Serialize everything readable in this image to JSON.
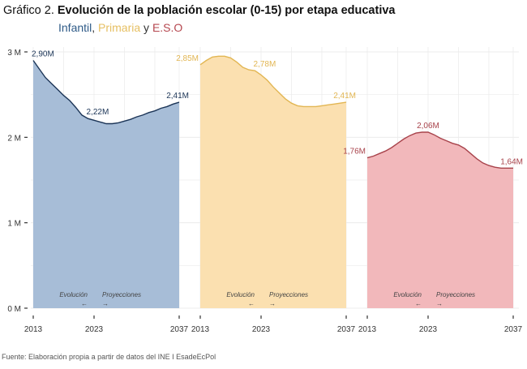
{
  "title": {
    "lead": "Gráfico 2.",
    "main": "Evolución de la población escolar (0-15) por etapa educativa"
  },
  "subtitle": {
    "parts": [
      {
        "text": "Infantil",
        "color": "#2e5a87"
      },
      {
        "text": ", ",
        "color": "#333333"
      },
      {
        "text": "Primaria",
        "color": "#e6bf62"
      },
      {
        "text": " y ",
        "color": "#333333"
      },
      {
        "text": "E.S.O",
        "color": "#b5474f"
      }
    ]
  },
  "source": "Fuente: Elaboración propia a partir de datos del INE I EsadeEcPol",
  "chart_data": {
    "type": "area",
    "xlim": [
      2013,
      2037
    ],
    "ylim": [
      0,
      3
    ],
    "y_ticks": [
      {
        "value": 0,
        "label": "0 M"
      },
      {
        "value": 1,
        "label": "1 M"
      },
      {
        "value": 2,
        "label": "2 M"
      },
      {
        "value": 3,
        "label": "3 M"
      }
    ],
    "x_ticks": [
      2013,
      2023,
      2037
    ],
    "grid": true,
    "annotations": {
      "left": "Evolución",
      "left_arrow": "←",
      "right": "Proyecciones",
      "right_arrow": "→",
      "split_year": 2023
    },
    "x": [
      2013,
      2014,
      2015,
      2016,
      2017,
      2018,
      2019,
      2020,
      2021,
      2022,
      2023,
      2024,
      2025,
      2026,
      2027,
      2028,
      2029,
      2030,
      2031,
      2032,
      2033,
      2034,
      2035,
      2036,
      2037
    ],
    "series": [
      {
        "name": "Infantil",
        "fill": "#a7bdd7",
        "line": "#1c3557",
        "label_color": "#1c3557",
        "values": [
          2.9,
          2.8,
          2.7,
          2.63,
          2.56,
          2.49,
          2.43,
          2.35,
          2.26,
          2.22,
          2.2,
          2.18,
          2.16,
          2.16,
          2.17,
          2.19,
          2.21,
          2.24,
          2.26,
          2.29,
          2.31,
          2.34,
          2.36,
          2.39,
          2.41
        ],
        "labels": [
          {
            "year": 2013,
            "text": "2,90M",
            "anchor": "start"
          },
          {
            "year": 2022,
            "text": "2,22M",
            "anchor": "start"
          },
          {
            "year": 2037,
            "text": "2,41M",
            "anchor": "end"
          }
        ]
      },
      {
        "name": "Primaria",
        "fill": "#fbe0b0",
        "line": "#e2b653",
        "label_color": "#e2b653",
        "values": [
          2.85,
          2.9,
          2.94,
          2.95,
          2.95,
          2.93,
          2.88,
          2.82,
          2.79,
          2.78,
          2.73,
          2.67,
          2.59,
          2.52,
          2.45,
          2.4,
          2.37,
          2.36,
          2.36,
          2.36,
          2.37,
          2.38,
          2.39,
          2.4,
          2.41
        ],
        "labels": [
          {
            "year": 2013,
            "text": "2,85M",
            "anchor": "end"
          },
          {
            "year": 2022,
            "text": "2,78M",
            "anchor": "start"
          },
          {
            "year": 2037,
            "text": "2,41M",
            "anchor": "end"
          }
        ]
      },
      {
        "name": "E.S.O",
        "fill": "#f2b8bb",
        "line": "#a8434b",
        "label_color": "#a8434b",
        "values": [
          1.76,
          1.78,
          1.81,
          1.84,
          1.88,
          1.93,
          1.98,
          2.02,
          2.05,
          2.06,
          2.06,
          2.03,
          1.99,
          1.96,
          1.93,
          1.91,
          1.87,
          1.81,
          1.75,
          1.7,
          1.67,
          1.65,
          1.64,
          1.64,
          1.64
        ],
        "labels": [
          {
            "year": 2013,
            "text": "1,76M",
            "anchor": "end"
          },
          {
            "year": 2023,
            "text": "2,06M",
            "anchor": "middle"
          },
          {
            "year": 2037,
            "text": "1,64M",
            "anchor": "end"
          }
        ]
      }
    ]
  }
}
